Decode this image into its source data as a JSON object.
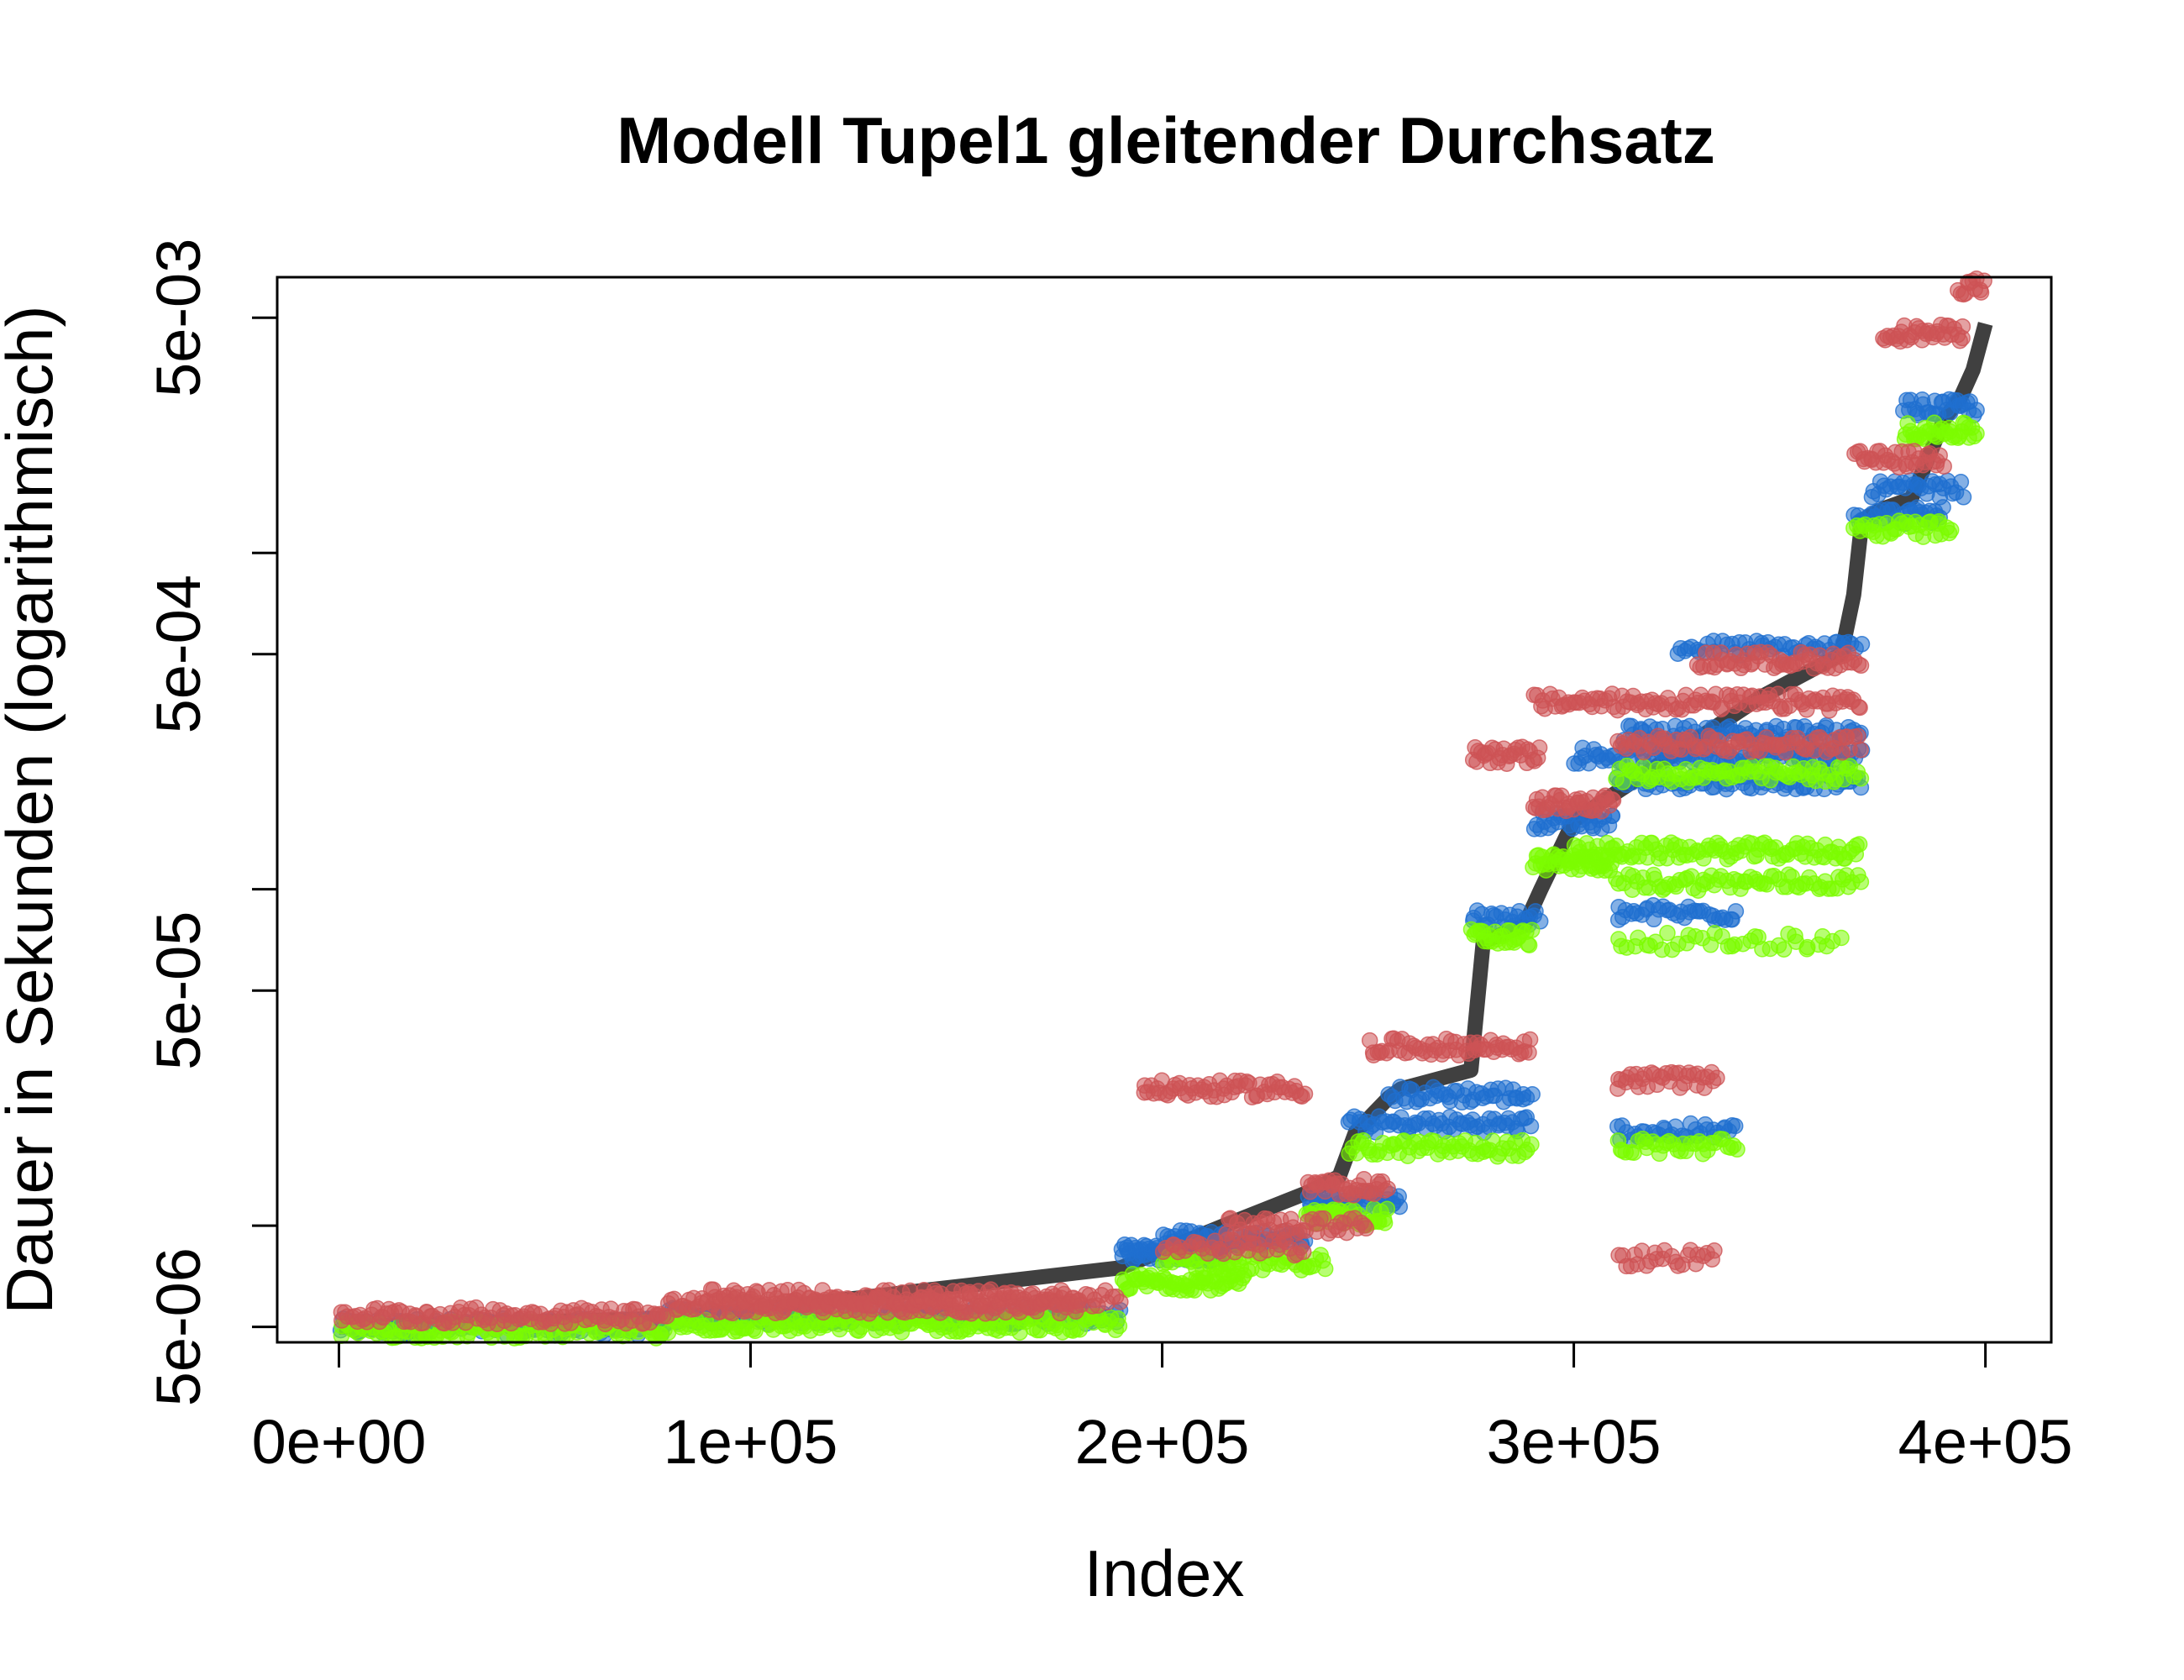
{
  "chart_data": {
    "type": "scatter",
    "title": "Modell Tupel1 gleitender Durchsatz",
    "xlabel": "Index",
    "ylabel": "Dauer in Sekunden (logarithmisch)",
    "x_scale": "linear",
    "y_scale": "log",
    "xlim": [
      -15000,
      416000
    ],
    "ylim": [
      4.5e-06,
      0.0066
    ],
    "x_ticks": [
      {
        "value": 0,
        "label": "0e+00"
      },
      {
        "value": 100000,
        "label": "1e+05"
      },
      {
        "value": 200000,
        "label": "2e+05"
      },
      {
        "value": 300000,
        "label": "3e+05"
      },
      {
        "value": 400000,
        "label": "4e+05"
      }
    ],
    "y_ticks": [
      {
        "value": 5e-06,
        "label": "5e-06"
      },
      {
        "value": 1e-05,
        "label": ""
      },
      {
        "value": 5e-05,
        "label": "5e-05"
      },
      {
        "value": 0.0001,
        "label": ""
      },
      {
        "value": 0.0005,
        "label": "5e-04"
      },
      {
        "value": 0.001,
        "label": ""
      },
      {
        "value": 0.005,
        "label": "5e-03"
      }
    ],
    "grid": false,
    "legend": "none",
    "colors": {
      "reference_line": "#404040",
      "blue": "#1f6fcf",
      "red": "#cd5355",
      "green": "#7cfc00"
    },
    "reference_line": {
      "x": [
        0,
        80000,
        100000,
        190000,
        215000,
        235000,
        243000,
        247000,
        255000,
        258000,
        275000,
        278000,
        288000,
        292000,
        300000,
        345000,
        365000,
        368000,
        370000,
        375000,
        382000,
        390000,
        394000,
        397000,
        400000
      ],
      "y": [
        5e-06,
        5.3e-06,
        5.6e-06,
        7.5e-06,
        1e-05,
        1.25e-05,
        1.4e-05,
        1.9e-05,
        2.4e-05,
        2.55e-05,
        2.9e-05,
        7e-05,
        7.8e-05,
        0.0001,
        0.00016,
        0.00037,
        0.0005,
        0.00075,
        0.00125,
        0.00135,
        0.00145,
        0.0025,
        0.0029,
        0.0035,
        0.0048
      ]
    },
    "series": [
      {
        "color": "blue",
        "bands": [
          {
            "x": [
              0,
              80000
            ],
            "y": 5e-06,
            "n": 120
          },
          {
            "x": [
              80000,
              190000
            ],
            "y": 5.4e-06,
            "n": 170
          },
          {
            "x": [
              190000,
              215000
            ],
            "y": 8.3e-06,
            "n": 70
          },
          {
            "x": [
              200000,
              235000
            ],
            "y": 9.2e-06,
            "n": 60
          },
          {
            "x": [
              235000,
              258000
            ],
            "y": 1.18e-05,
            "n": 45
          },
          {
            "x": [
              245000,
              290000
            ],
            "y": 2e-05,
            "n": 60
          },
          {
            "x": [
              255000,
              290000
            ],
            "y": 2.45e-05,
            "n": 45
          },
          {
            "x": [
              275000,
              292000
            ],
            "y": 8.2e-05,
            "n": 25
          },
          {
            "x": [
              290000,
              310000
            ],
            "y": 0.00016,
            "n": 30
          },
          {
            "x": [
              300000,
              370000
            ],
            "y": 0.00025,
            "n": 100
          },
          {
            "x": [
              310000,
              370000
            ],
            "y": 0.00021,
            "n": 80
          },
          {
            "x": [
              312000,
              370000
            ],
            "y": 0.00029,
            "n": 80
          },
          {
            "x": [
              325000,
              370000
            ],
            "y": 0.00052,
            "n": 50
          },
          {
            "x": [
              310000,
              340000
            ],
            "y": 1.9e-05,
            "n": 35
          },
          {
            "x": [
              310000,
              340000
            ],
            "y": 8.5e-05,
            "n": 35
          },
          {
            "x": [
              368000,
              390000
            ],
            "y": 0.00129,
            "n": 35
          },
          {
            "x": [
              372000,
              395000
            ],
            "y": 0.00155,
            "n": 30
          },
          {
            "x": [
              380000,
              398000
            ],
            "y": 0.0027,
            "n": 30
          }
        ]
      },
      {
        "color": "green",
        "bands": [
          {
            "x": [
              0,
              80000
            ],
            "y": 4.9e-06,
            "n": 120
          },
          {
            "x": [
              80000,
              190000
            ],
            "y": 5.1e-06,
            "n": 170
          },
          {
            "x": [
              190000,
              220000
            ],
            "y": 6.8e-06,
            "n": 60
          },
          {
            "x": [
              200000,
              240000
            ],
            "y": 7.8e-06,
            "n": 55
          },
          {
            "x": [
              235000,
              255000
            ],
            "y": 1.06e-05,
            "n": 40
          },
          {
            "x": [
              245000,
              290000
            ],
            "y": 1.7e-05,
            "n": 60
          },
          {
            "x": [
              275000,
              290000
            ],
            "y": 7.2e-05,
            "n": 30
          },
          {
            "x": [
              290000,
              310000
            ],
            "y": 0.00012,
            "n": 45
          },
          {
            "x": [
              300000,
              370000
            ],
            "y": 0.00013,
            "n": 100
          },
          {
            "x": [
              310000,
              370000
            ],
            "y": 0.00022,
            "n": 80
          },
          {
            "x": [
              310000,
              370000
            ],
            "y": 0.000105,
            "n": 70
          },
          {
            "x": [
              310000,
              365000
            ],
            "y": 7e-05,
            "n": 40
          },
          {
            "x": [
              310000,
              340000
            ],
            "y": 1.72e-05,
            "n": 35
          },
          {
            "x": [
              368000,
              392000
            ],
            "y": 0.00118,
            "n": 35
          },
          {
            "x": [
              380000,
              398000
            ],
            "y": 0.0023,
            "n": 35
          }
        ]
      },
      {
        "color": "red",
        "bands": [
          {
            "x": [
              0,
              80000
            ],
            "y": 5.4e-06,
            "n": 120
          },
          {
            "x": [
              80000,
              180000
            ],
            "y": 5.8e-06,
            "n": 170
          },
          {
            "x": [
              90000,
              190000
            ],
            "y": 6.1e-06,
            "n": 120
          },
          {
            "x": [
              195000,
              235000
            ],
            "y": 2.55e-05,
            "n": 60
          },
          {
            "x": [
              200000,
              235000
            ],
            "y": 8.6e-06,
            "n": 40
          },
          {
            "x": [
              215000,
              250000
            ],
            "y": 1e-05,
            "n": 45
          },
          {
            "x": [
              235000,
              255000
            ],
            "y": 1.3e-05,
            "n": 35
          },
          {
            "x": [
              250000,
              290000
            ],
            "y": 3.4e-05,
            "n": 60
          },
          {
            "x": [
              275000,
              292000
            ],
            "y": 0.00025,
            "n": 30
          },
          {
            "x": [
              290000,
              310000
            ],
            "y": 0.00018,
            "n": 40
          },
          {
            "x": [
              290000,
              370000
            ],
            "y": 0.00036,
            "n": 110
          },
          {
            "x": [
              310000,
              370000
            ],
            "y": 0.00027,
            "n": 80
          },
          {
            "x": [
              330000,
              370000
            ],
            "y": 0.00048,
            "n": 60
          },
          {
            "x": [
              310000,
              335000
            ],
            "y": 2.7e-05,
            "n": 35
          },
          {
            "x": [
              310000,
              335000
            ],
            "y": 8e-06,
            "n": 25
          },
          {
            "x": [
              368000,
              390000
            ],
            "y": 0.0019,
            "n": 35
          },
          {
            "x": [
              375000,
              395000
            ],
            "y": 0.0045,
            "n": 35
          },
          {
            "x": [
              393000,
              400000
            ],
            "y": 0.0062,
            "n": 12
          }
        ]
      }
    ]
  }
}
